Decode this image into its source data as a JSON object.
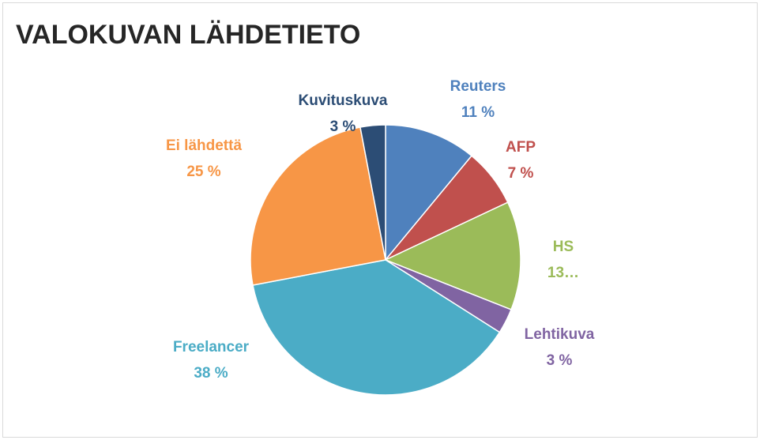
{
  "chart_data": {
    "type": "pie",
    "title": "VALOKUVAN LÄHDETIETO",
    "categories": [
      "Reuters",
      "AFP",
      "HS",
      "Lehtikuva",
      "Freelancer",
      "Ei lähdettä",
      "Kuvituskuva"
    ],
    "values": [
      11,
      7,
      13,
      3,
      38,
      25,
      3
    ],
    "value_labels": [
      "11 %",
      "7 %",
      "13…",
      "3 %",
      "38 %",
      "25 %",
      "3 %"
    ],
    "colors": [
      "#4f81bd",
      "#c0504d",
      "#9bbb59",
      "#8064a2",
      "#4bacc6",
      "#f79646",
      "#2c4d75"
    ]
  }
}
